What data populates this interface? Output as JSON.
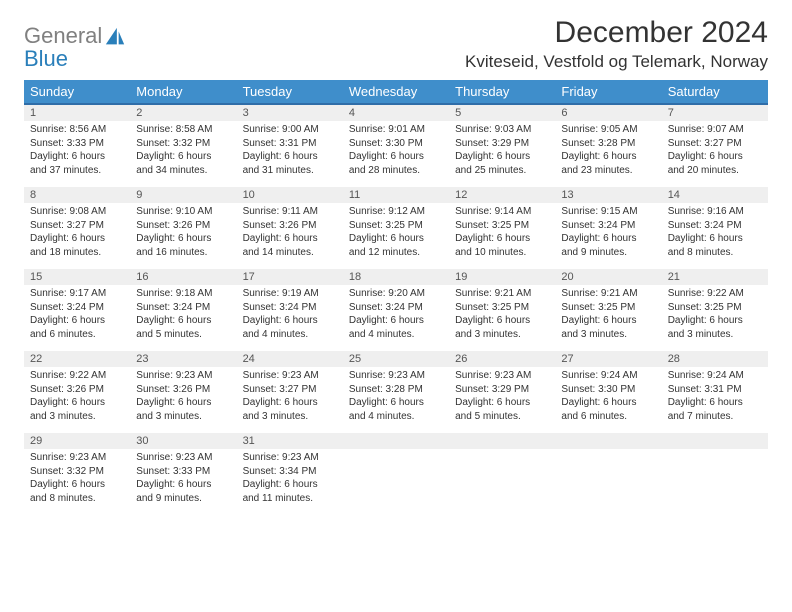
{
  "logo": {
    "word1": "General",
    "word2": "Blue",
    "icon_color": "#2a7fba"
  },
  "title": "December 2024",
  "location": "Kviteseid, Vestfold og Telemark, Norway",
  "columns": [
    "Sunday",
    "Monday",
    "Tuesday",
    "Wednesday",
    "Thursday",
    "Friday",
    "Saturday"
  ],
  "colors": {
    "header_bg": "#3f8ecb",
    "header_text": "#ffffff",
    "row_border": "#2f6da8",
    "date_bg": "#efefef",
    "body_text": "#333333"
  },
  "weeks": [
    [
      {
        "date": "1",
        "sunrise": "Sunrise: 8:56 AM",
        "sunset": "Sunset: 3:33 PM",
        "daylight": "Daylight: 6 hours and 37 minutes."
      },
      {
        "date": "2",
        "sunrise": "Sunrise: 8:58 AM",
        "sunset": "Sunset: 3:32 PM",
        "daylight": "Daylight: 6 hours and 34 minutes."
      },
      {
        "date": "3",
        "sunrise": "Sunrise: 9:00 AM",
        "sunset": "Sunset: 3:31 PM",
        "daylight": "Daylight: 6 hours and 31 minutes."
      },
      {
        "date": "4",
        "sunrise": "Sunrise: 9:01 AM",
        "sunset": "Sunset: 3:30 PM",
        "daylight": "Daylight: 6 hours and 28 minutes."
      },
      {
        "date": "5",
        "sunrise": "Sunrise: 9:03 AM",
        "sunset": "Sunset: 3:29 PM",
        "daylight": "Daylight: 6 hours and 25 minutes."
      },
      {
        "date": "6",
        "sunrise": "Sunrise: 9:05 AM",
        "sunset": "Sunset: 3:28 PM",
        "daylight": "Daylight: 6 hours and 23 minutes."
      },
      {
        "date": "7",
        "sunrise": "Sunrise: 9:07 AM",
        "sunset": "Sunset: 3:27 PM",
        "daylight": "Daylight: 6 hours and 20 minutes."
      }
    ],
    [
      {
        "date": "8",
        "sunrise": "Sunrise: 9:08 AM",
        "sunset": "Sunset: 3:27 PM",
        "daylight": "Daylight: 6 hours and 18 minutes."
      },
      {
        "date": "9",
        "sunrise": "Sunrise: 9:10 AM",
        "sunset": "Sunset: 3:26 PM",
        "daylight": "Daylight: 6 hours and 16 minutes."
      },
      {
        "date": "10",
        "sunrise": "Sunrise: 9:11 AM",
        "sunset": "Sunset: 3:26 PM",
        "daylight": "Daylight: 6 hours and 14 minutes."
      },
      {
        "date": "11",
        "sunrise": "Sunrise: 9:12 AM",
        "sunset": "Sunset: 3:25 PM",
        "daylight": "Daylight: 6 hours and 12 minutes."
      },
      {
        "date": "12",
        "sunrise": "Sunrise: 9:14 AM",
        "sunset": "Sunset: 3:25 PM",
        "daylight": "Daylight: 6 hours and 10 minutes."
      },
      {
        "date": "13",
        "sunrise": "Sunrise: 9:15 AM",
        "sunset": "Sunset: 3:24 PM",
        "daylight": "Daylight: 6 hours and 9 minutes."
      },
      {
        "date": "14",
        "sunrise": "Sunrise: 9:16 AM",
        "sunset": "Sunset: 3:24 PM",
        "daylight": "Daylight: 6 hours and 8 minutes."
      }
    ],
    [
      {
        "date": "15",
        "sunrise": "Sunrise: 9:17 AM",
        "sunset": "Sunset: 3:24 PM",
        "daylight": "Daylight: 6 hours and 6 minutes."
      },
      {
        "date": "16",
        "sunrise": "Sunrise: 9:18 AM",
        "sunset": "Sunset: 3:24 PM",
        "daylight": "Daylight: 6 hours and 5 minutes."
      },
      {
        "date": "17",
        "sunrise": "Sunrise: 9:19 AM",
        "sunset": "Sunset: 3:24 PM",
        "daylight": "Daylight: 6 hours and 4 minutes."
      },
      {
        "date": "18",
        "sunrise": "Sunrise: 9:20 AM",
        "sunset": "Sunset: 3:24 PM",
        "daylight": "Daylight: 6 hours and 4 minutes."
      },
      {
        "date": "19",
        "sunrise": "Sunrise: 9:21 AM",
        "sunset": "Sunset: 3:25 PM",
        "daylight": "Daylight: 6 hours and 3 minutes."
      },
      {
        "date": "20",
        "sunrise": "Sunrise: 9:21 AM",
        "sunset": "Sunset: 3:25 PM",
        "daylight": "Daylight: 6 hours and 3 minutes."
      },
      {
        "date": "21",
        "sunrise": "Sunrise: 9:22 AM",
        "sunset": "Sunset: 3:25 PM",
        "daylight": "Daylight: 6 hours and 3 minutes."
      }
    ],
    [
      {
        "date": "22",
        "sunrise": "Sunrise: 9:22 AM",
        "sunset": "Sunset: 3:26 PM",
        "daylight": "Daylight: 6 hours and 3 minutes."
      },
      {
        "date": "23",
        "sunrise": "Sunrise: 9:23 AM",
        "sunset": "Sunset: 3:26 PM",
        "daylight": "Daylight: 6 hours and 3 minutes."
      },
      {
        "date": "24",
        "sunrise": "Sunrise: 9:23 AM",
        "sunset": "Sunset: 3:27 PM",
        "daylight": "Daylight: 6 hours and 3 minutes."
      },
      {
        "date": "25",
        "sunrise": "Sunrise: 9:23 AM",
        "sunset": "Sunset: 3:28 PM",
        "daylight": "Daylight: 6 hours and 4 minutes."
      },
      {
        "date": "26",
        "sunrise": "Sunrise: 9:23 AM",
        "sunset": "Sunset: 3:29 PM",
        "daylight": "Daylight: 6 hours and 5 minutes."
      },
      {
        "date": "27",
        "sunrise": "Sunrise: 9:24 AM",
        "sunset": "Sunset: 3:30 PM",
        "daylight": "Daylight: 6 hours and 6 minutes."
      },
      {
        "date": "28",
        "sunrise": "Sunrise: 9:24 AM",
        "sunset": "Sunset: 3:31 PM",
        "daylight": "Daylight: 6 hours and 7 minutes."
      }
    ],
    [
      {
        "date": "29",
        "sunrise": "Sunrise: 9:23 AM",
        "sunset": "Sunset: 3:32 PM",
        "daylight": "Daylight: 6 hours and 8 minutes."
      },
      {
        "date": "30",
        "sunrise": "Sunrise: 9:23 AM",
        "sunset": "Sunset: 3:33 PM",
        "daylight": "Daylight: 6 hours and 9 minutes."
      },
      {
        "date": "31",
        "sunrise": "Sunrise: 9:23 AM",
        "sunset": "Sunset: 3:34 PM",
        "daylight": "Daylight: 6 hours and 11 minutes."
      },
      {
        "date": "",
        "empty": true
      },
      {
        "date": "",
        "empty": true
      },
      {
        "date": "",
        "empty": true
      },
      {
        "date": "",
        "empty": true
      }
    ]
  ]
}
